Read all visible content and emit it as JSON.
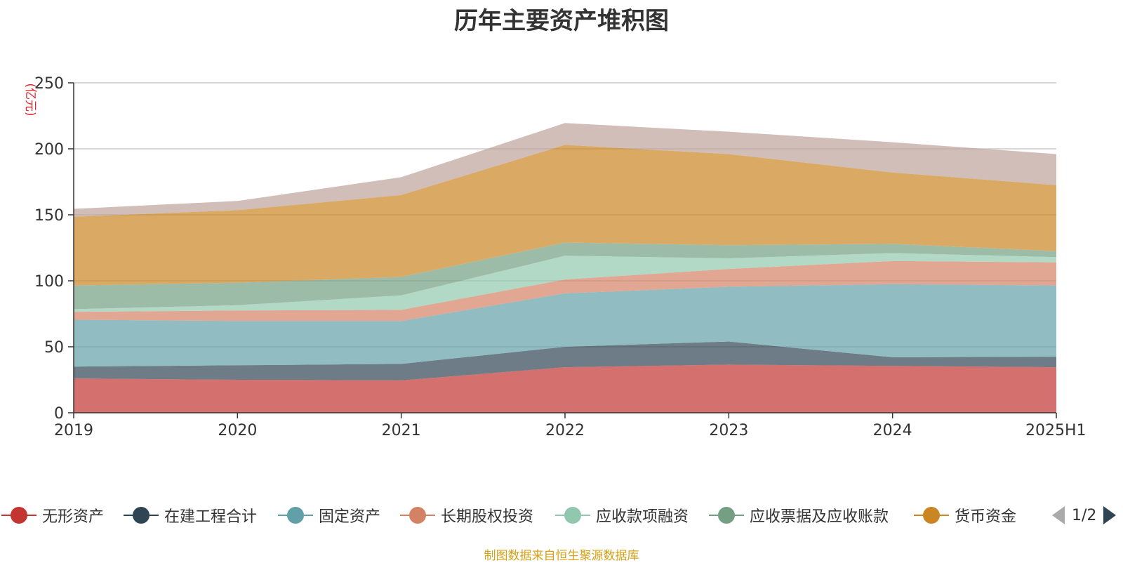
{
  "title": "历年主要资产堆积图",
  "footer": "制图数据来自恒生聚源数据库",
  "chart_data": {
    "type": "area",
    "stacked": true,
    "title": "历年主要资产堆积图",
    "ylabel": "(亿元)",
    "xlabel": "",
    "ylim": [
      0,
      250
    ],
    "yticks": [
      0,
      50,
      100,
      150,
      200,
      250
    ],
    "grid": true,
    "legend_position": "bottom",
    "categories": [
      "2019",
      "2020",
      "2021",
      "2022",
      "2023",
      "2024",
      "2025H1"
    ],
    "series": [
      {
        "name": "无形资产",
        "color": "#c23531",
        "values": [
          26,
          25,
          24.5,
          34.5,
          36.5,
          35.5,
          34.5
        ]
      },
      {
        "name": "在建工程合计",
        "color": "#2f4554",
        "values": [
          9,
          11,
          12.5,
          15.5,
          17.5,
          6.5,
          8
        ]
      },
      {
        "name": "固定资产",
        "color": "#61a0a8",
        "values": [
          35.5,
          33.5,
          32.5,
          40.5,
          41.5,
          55.5,
          54
        ]
      },
      {
        "name": "长期股权投资",
        "color": "#d48265",
        "values": [
          6,
          8,
          8.5,
          10.5,
          13.5,
          17.5,
          17.5
        ]
      },
      {
        "name": "应收款项融资",
        "color": "#91c7ae",
        "values": [
          2,
          4,
          11,
          18,
          8,
          6,
          4
        ]
      },
      {
        "name": "应收票据及应收账款",
        "color": "#749f83",
        "values": [
          18,
          17,
          14,
          10,
          10,
          7,
          4.5
        ]
      },
      {
        "name": "货币资金",
        "color": "#ca8622",
        "values": [
          52,
          55,
          62,
          74,
          69,
          54,
          50
        ]
      },
      {
        "name": "",
        "color": "#bda29a",
        "values": [
          6,
          7,
          13.5,
          16.5,
          17,
          23,
          23.5
        ]
      }
    ],
    "legend_visible": [
      "无形资产",
      "在建工程合计",
      "固定资产",
      "长期股权投资",
      "应收款项融资",
      "应收票据及应收账款",
      "货币资金"
    ],
    "legend_page": "1/2"
  }
}
